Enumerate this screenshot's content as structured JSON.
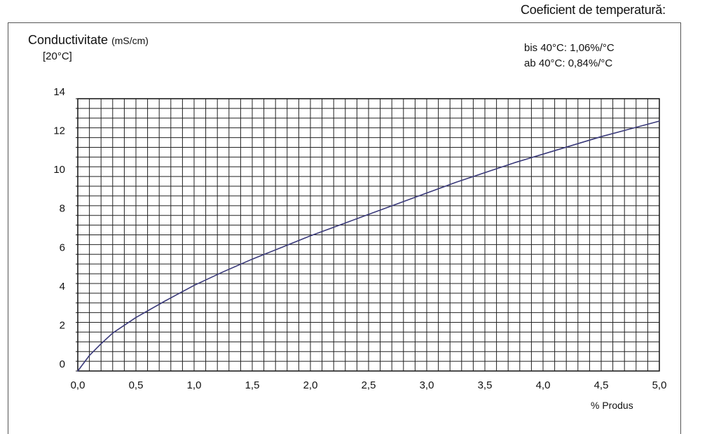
{
  "chart_data": {
    "type": "line",
    "title": "Coeficient de temperatură:",
    "ylabel": "Conductivitate",
    "yunit": "(mS/cm)",
    "ylabel_ref": "[20°C]",
    "xlabel": "% Produs",
    "annotations": [
      "bis  40°C:  1,06%/°C",
      "ab 40°C: 0,84%/°C"
    ],
    "xlim": [
      0,
      5
    ],
    "ylim": [
      0,
      14
    ],
    "x_ticks": [
      "0,0",
      "0,5",
      "1,0",
      "1,5",
      "2,0",
      "2,5",
      "3,0",
      "3,5",
      "4,0",
      "4,5",
      "5,0"
    ],
    "y_ticks": [
      "0",
      "2",
      "4",
      "6",
      "8",
      "10",
      "12",
      "14"
    ],
    "grid": true,
    "series": [
      {
        "color": "#3a3a7a",
        "x": [
          0.0,
          0.1,
          0.2,
          0.3,
          0.4,
          0.5,
          0.75,
          1.0,
          1.25,
          1.5,
          1.75,
          2.0,
          2.25,
          2.5,
          2.75,
          3.0,
          3.25,
          3.5,
          3.75,
          4.0,
          4.25,
          4.5,
          4.75,
          5.0
        ],
        "y": [
          0.0,
          0.8,
          1.4,
          1.95,
          2.35,
          2.75,
          3.6,
          4.4,
          5.1,
          5.75,
          6.35,
          6.95,
          7.5,
          8.05,
          8.6,
          9.15,
          9.7,
          10.2,
          10.7,
          11.15,
          11.6,
          12.05,
          12.45,
          12.85
        ]
      }
    ]
  }
}
